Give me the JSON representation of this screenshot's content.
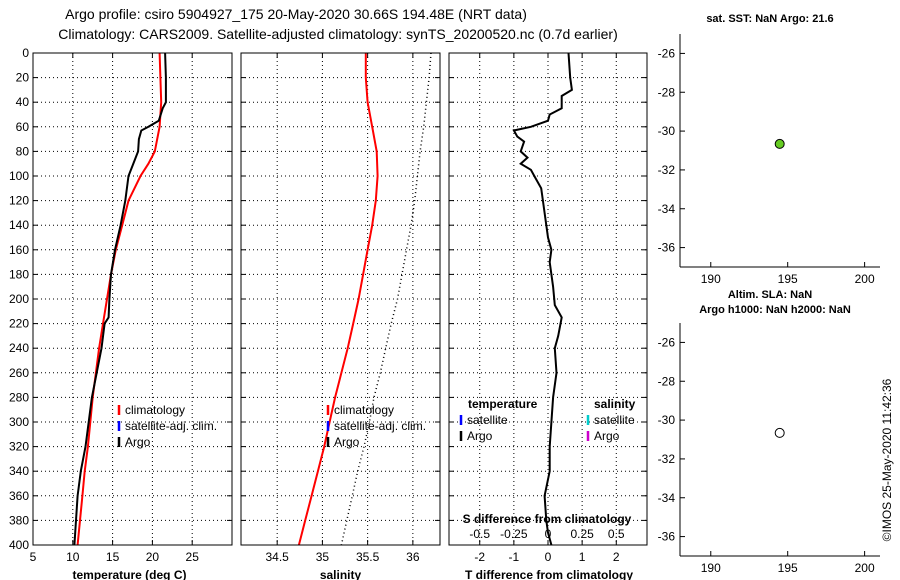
{
  "header": {
    "line1": "Argo profile: csiro 5904927_175 20-May-2020 30.66S 194.48E (NRT data)",
    "line2": "Climatology: CARS2009. Satellite-adjusted climatology: synTS_20200520.nc (0.7d earlier)"
  },
  "watermark": "©IMOS 25-May-2020 11:42:36",
  "colors": {
    "climatology": "#ff0000",
    "satellite_adj": "#0000ff",
    "argo": "#000000",
    "sat_diff_s": "#00cccc",
    "argo_diff_s": "#cc00cc",
    "sst_marker": "#66cc22"
  },
  "chart_data": [
    {
      "id": "temperature",
      "type": "line",
      "xlabel": "temperature (deg C)",
      "xlim": [
        5,
        30
      ],
      "xticks": [
        "5",
        "10",
        "15",
        "20",
        "25"
      ],
      "xtick_values": [
        5,
        10,
        15,
        20,
        25
      ],
      "ylim": [
        0,
        400
      ],
      "yticks": [
        "0",
        "20",
        "40",
        "60",
        "80",
        "100",
        "120",
        "140",
        "160",
        "180",
        "200",
        "220",
        "240",
        "260",
        "280",
        "300",
        "320",
        "340",
        "360",
        "380",
        "400"
      ],
      "ytick_values": [
        0,
        20,
        40,
        60,
        80,
        100,
        120,
        140,
        160,
        180,
        200,
        220,
        240,
        260,
        280,
        300,
        320,
        340,
        360,
        380,
        400
      ],
      "legend": [
        "climatology",
        "satellite-adj. clim.",
        "Argo"
      ],
      "series": [
        {
          "name": "climatology",
          "color": "#ff0000",
          "dash": false,
          "points": [
            [
              20.9,
              0
            ],
            [
              21.0,
              20
            ],
            [
              21.1,
              40
            ],
            [
              20.9,
              60
            ],
            [
              20.3,
              80
            ],
            [
              19.5,
              90
            ],
            [
              18.5,
              100
            ],
            [
              17.0,
              120
            ],
            [
              16.2,
              140
            ],
            [
              15.4,
              160
            ],
            [
              14.8,
              180
            ],
            [
              14.3,
              200
            ],
            [
              13.8,
              220
            ],
            [
              13.3,
              240
            ],
            [
              12.9,
              260
            ],
            [
              12.5,
              280
            ],
            [
              12.2,
              300
            ],
            [
              11.9,
              320
            ],
            [
              11.5,
              340
            ],
            [
              11.2,
              360
            ],
            [
              10.9,
              380
            ],
            [
              10.6,
              400
            ]
          ]
        },
        {
          "name": "Argo",
          "color": "#000000",
          "dash": false,
          "points": [
            [
              21.6,
              0
            ],
            [
              21.7,
              20
            ],
            [
              21.7,
              40
            ],
            [
              21.3,
              45
            ],
            [
              20.8,
              55
            ],
            [
              19.5,
              60
            ],
            [
              18.6,
              63
            ],
            [
              18.3,
              70
            ],
            [
              18.2,
              80
            ],
            [
              17.6,
              90
            ],
            [
              17.0,
              100
            ],
            [
              16.6,
              120
            ],
            [
              16.0,
              140
            ],
            [
              15.3,
              160
            ],
            [
              14.8,
              180
            ],
            [
              14.6,
              200
            ],
            [
              14.5,
              215
            ],
            [
              14.0,
              220
            ],
            [
              13.6,
              240
            ],
            [
              13.0,
              260
            ],
            [
              12.4,
              280
            ],
            [
              12.0,
              300
            ],
            [
              11.6,
              320
            ],
            [
              11.0,
              340
            ],
            [
              10.6,
              360
            ],
            [
              10.4,
              380
            ],
            [
              10.2,
              400
            ]
          ]
        }
      ]
    },
    {
      "id": "salinity",
      "type": "line",
      "xlabel": "salinity",
      "xlim": [
        34.1,
        36.3
      ],
      "xticks": [
        "34.5",
        "35",
        "35.5",
        "36"
      ],
      "xtick_values": [
        34.5,
        35,
        35.5,
        36
      ],
      "ylim": [
        0,
        400
      ],
      "legend": [
        "climatology",
        "satellite-adj. clim.",
        "Argo"
      ],
      "series": [
        {
          "name": "climatology",
          "color": "#ff0000",
          "dash": false,
          "points": [
            [
              35.48,
              0
            ],
            [
              35.48,
              20
            ],
            [
              35.5,
              40
            ],
            [
              35.55,
              60
            ],
            [
              35.6,
              80
            ],
            [
              35.61,
              100
            ],
            [
              35.59,
              120
            ],
            [
              35.55,
              140
            ],
            [
              35.5,
              160
            ],
            [
              35.45,
              180
            ],
            [
              35.4,
              200
            ],
            [
              35.34,
              220
            ],
            [
              35.28,
              240
            ],
            [
              35.21,
              260
            ],
            [
              35.14,
              280
            ],
            [
              35.08,
              300
            ],
            [
              35.02,
              320
            ],
            [
              34.95,
              340
            ],
            [
              34.88,
              360
            ],
            [
              34.81,
              380
            ],
            [
              34.74,
              400
            ]
          ]
        },
        {
          "name": "Argo",
          "color": "#000000",
          "dash": true,
          "points": [
            [
              36.2,
              0
            ],
            [
              36.18,
              20
            ],
            [
              36.15,
              40
            ],
            [
              36.12,
              60
            ],
            [
              36.08,
              80
            ],
            [
              36.05,
              100
            ],
            [
              36.02,
              120
            ],
            [
              35.98,
              140
            ],
            [
              35.93,
              160
            ],
            [
              35.88,
              180
            ],
            [
              35.83,
              200
            ],
            [
              35.76,
              220
            ],
            [
              35.7,
              240
            ],
            [
              35.64,
              260
            ],
            [
              35.57,
              280
            ],
            [
              35.52,
              300
            ],
            [
              35.46,
              320
            ],
            [
              35.39,
              340
            ],
            [
              35.33,
              360
            ],
            [
              35.27,
              380
            ],
            [
              35.21,
              400
            ]
          ]
        }
      ]
    },
    {
      "id": "difference",
      "type": "line",
      "xlabel": "T difference from climatology",
      "xlabel_top": "S difference from climatology",
      "xlim": [
        -2.9,
        2.9
      ],
      "xticks": [
        "-2",
        "-1",
        "0",
        "1",
        "2"
      ],
      "xtick_values": [
        -2,
        -1,
        0,
        1,
        2
      ],
      "s_xticks": [
        "-0.5",
        "-0.25",
        "0",
        "0.25",
        "0.5"
      ],
      "s_xtick_values": [
        -0.5,
        -0.25,
        0,
        0.25,
        0.5
      ],
      "s_scale": 4,
      "ylim": [
        0,
        400
      ],
      "legend_temperature_title": "temperature",
      "legend_salinity_title": "salinity",
      "legend_temperature": [
        "satellite",
        "Argo"
      ],
      "legend_salinity": [
        "satellite",
        "Argo"
      ],
      "series": [
        {
          "name": "Argo T difference",
          "color": "#000000",
          "dash": false,
          "points": [
            [
              0.6,
              0
            ],
            [
              0.65,
              20
            ],
            [
              0.7,
              30
            ],
            [
              0.4,
              35
            ],
            [
              0.4,
              45
            ],
            [
              0.05,
              50
            ],
            [
              0.0,
              55
            ],
            [
              -0.5,
              60
            ],
            [
              -1.0,
              63
            ],
            [
              -0.9,
              68
            ],
            [
              -0.7,
              72
            ],
            [
              -0.8,
              80
            ],
            [
              -0.6,
              85
            ],
            [
              -0.8,
              90
            ],
            [
              -0.5,
              95
            ],
            [
              -0.4,
              100
            ],
            [
              -0.2,
              110
            ],
            [
              -0.1,
              130
            ],
            [
              0.0,
              150
            ],
            [
              0.1,
              160
            ],
            [
              0.05,
              170
            ],
            [
              0.15,
              190
            ],
            [
              0.2,
              205
            ],
            [
              0.4,
              215
            ],
            [
              0.3,
              230
            ],
            [
              0.2,
              240
            ],
            [
              0.25,
              260
            ],
            [
              0.15,
              280
            ],
            [
              0.1,
              300
            ],
            [
              0.05,
              320
            ],
            [
              0.05,
              340
            ],
            [
              -0.1,
              360
            ],
            [
              -0.05,
              380
            ],
            [
              0.0,
              390
            ],
            [
              0.1,
              400
            ]
          ]
        }
      ]
    },
    {
      "id": "map_sst",
      "type": "scatter",
      "title": "sat. SST: NaN Argo: 21.6",
      "xlim": [
        188,
        201
      ],
      "ylim": [
        -37,
        -25
      ],
      "xticks": [
        "190",
        "195",
        "200"
      ],
      "xtick_values": [
        190,
        195,
        200
      ],
      "yticks": [
        "-26",
        "-28",
        "-30",
        "-32",
        "-34",
        "-36"
      ],
      "ytick_values": [
        -26,
        -28,
        -30,
        -32,
        -34,
        -36
      ],
      "points": [
        {
          "x": 194.48,
          "y": -30.66,
          "color": "#66cc22"
        }
      ]
    },
    {
      "id": "map_sla",
      "type": "scatter",
      "title": "Altim. SLA: NaN",
      "subtitle": "Argo h1000: NaN h2000: NaN",
      "xlim": [
        188,
        201
      ],
      "ylim": [
        -37,
        -25
      ],
      "xticks": [
        "190",
        "195",
        "200"
      ],
      "xtick_values": [
        190,
        195,
        200
      ],
      "yticks": [
        "-26",
        "-28",
        "-30",
        "-32",
        "-34",
        "-36"
      ],
      "ytick_values": [
        -26,
        -28,
        -30,
        -32,
        -34,
        -36
      ],
      "points": [
        {
          "x": 194.48,
          "y": -30.66,
          "color": "#ffffff"
        }
      ]
    }
  ]
}
